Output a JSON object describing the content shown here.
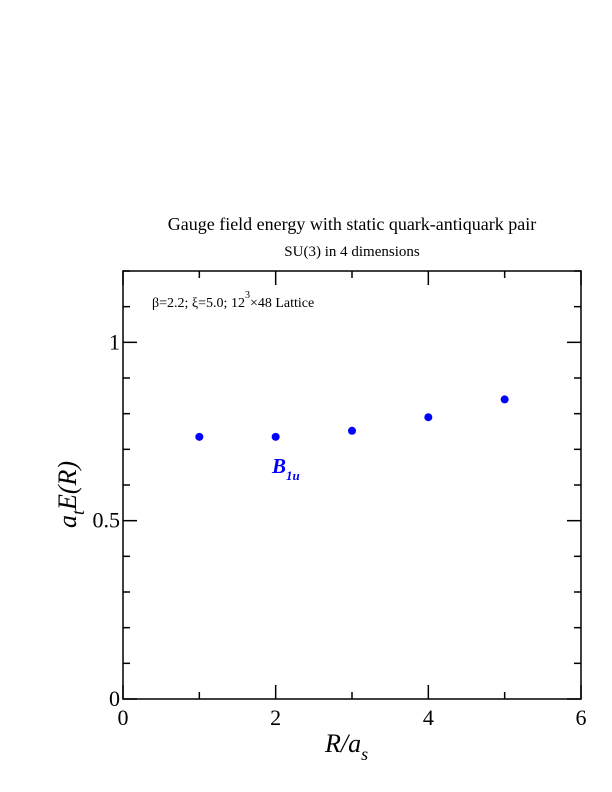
{
  "chart_data": {
    "type": "scatter",
    "title": "Gauge field energy with static quark-antiquark pair",
    "subtitle": "SU(3) in 4 dimensions",
    "annotation": {
      "beta": "β=2.2;",
      "xi": "ξ=5.0;",
      "lattice_prefix": "12",
      "lattice_exp": "3",
      "lattice_suffix": "×48 Lattice"
    },
    "xlabel": {
      "main": "R/a",
      "sub": "s"
    },
    "ylabel": {
      "a": "a",
      "sub": "t",
      "rest": "E(R)"
    },
    "series_label": {
      "main": "B",
      "sub": "1u"
    },
    "xlim": [
      0,
      6
    ],
    "ylim": [
      0,
      1.2
    ],
    "x_ticks": [
      0,
      2,
      4,
      6
    ],
    "x_tick_labels": [
      "0",
      "2",
      "4",
      "6"
    ],
    "y_ticks": [
      0,
      0.5,
      1
    ],
    "y_tick_labels": [
      "0",
      "0.5",
      "1"
    ],
    "x_minor_step": 1,
    "y_minor_step": 0.1,
    "grid": false,
    "marker_color": "#0000ff",
    "series": [
      {
        "x": [
          1,
          2,
          3,
          4,
          5
        ],
        "y": [
          0.735,
          0.735,
          0.752,
          0.79,
          0.84
        ]
      }
    ]
  }
}
